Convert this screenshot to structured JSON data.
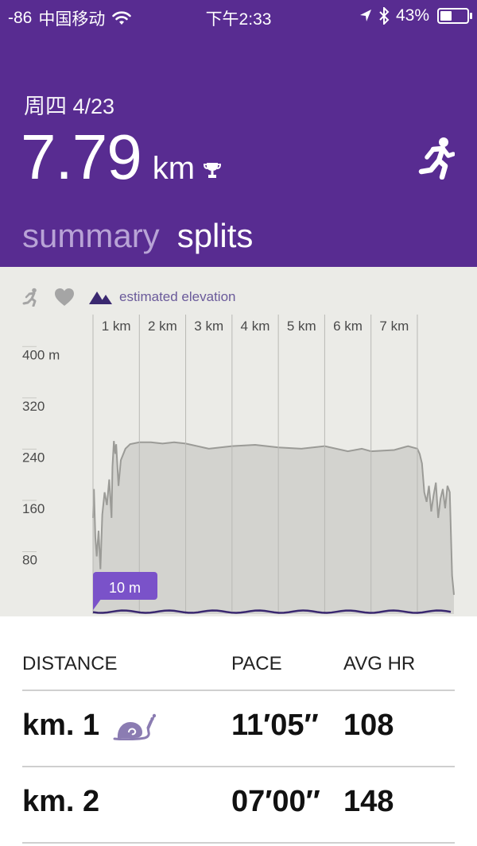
{
  "status_bar": {
    "signal": "-86",
    "carrier": "中国移动",
    "time": "下午2:33",
    "battery_percent_text": "43%",
    "battery_level": 0.43
  },
  "summary": {
    "date": "周四 4/23",
    "distance": "7.79",
    "unit": "km",
    "activity_icon": "running-person-icon",
    "record_icon": "trophy-icon"
  },
  "tabs": {
    "summary": "summary",
    "splits": "splits",
    "active": "splits"
  },
  "chart": {
    "toolbar": {
      "pace_icon": "runner-icon",
      "heart_icon": "heart-icon",
      "elevation_icon": "mountains-icon",
      "elevation_label": "estimated elevation"
    },
    "current_marker": "10 m"
  },
  "chart_data": {
    "type": "area",
    "title": "",
    "xlabel": "",
    "ylabel": "",
    "x_tick_labels": [
      "1 km",
      "2 km",
      "3 km",
      "4 km",
      "5 km",
      "6 km",
      "7 km"
    ],
    "y_tick_labels": [
      "400 m",
      "320",
      "240",
      "160",
      "80"
    ],
    "y_ticks": [
      400,
      320,
      240,
      160,
      80
    ],
    "ylim": [
      0,
      440
    ],
    "xlim": [
      0,
      7.79
    ],
    "grid": true,
    "series": [
      {
        "values_x": [
          0,
          0.02,
          0.05,
          0.08,
          0.12,
          0.16,
          0.2,
          0.25,
          0.3,
          0.35,
          0.4,
          0.42,
          0.45,
          0.48,
          0.5,
          0.55,
          0.6,
          0.7,
          0.8,
          1.0,
          1.25,
          1.5,
          1.75,
          2.0,
          2.5,
          3.0,
          3.5,
          4.0,
          4.5,
          5.0,
          5.5,
          5.8,
          6.0,
          6.5,
          6.8,
          7.0,
          7.05,
          7.1,
          7.15,
          7.2,
          7.25,
          7.3,
          7.35,
          7.4,
          7.45,
          7.5,
          7.55,
          7.6,
          7.65,
          7.7,
          7.75,
          7.79
        ],
        "values_y": [
          150,
          195,
          120,
          90,
          130,
          70,
          155,
          190,
          170,
          210,
          150,
          230,
          270,
          250,
          265,
          200,
          240,
          258,
          265,
          268,
          268,
          266,
          268,
          266,
          258,
          262,
          264,
          260,
          258,
          262,
          254,
          258,
          254,
          256,
          262,
          258,
          250,
          235,
          190,
          175,
          200,
          160,
          185,
          205,
          150,
          180,
          195,
          165,
          200,
          190,
          60,
          30
        ]
      }
    ],
    "bottom_series": {
      "name": "",
      "values_y": [
        10,
        10
      ]
    },
    "marker_label": "10 m"
  },
  "table": {
    "headers": {
      "distance": "DISTANCE",
      "pace": "PACE",
      "avg_hr": "AVG HR"
    },
    "rows": [
      {
        "distance": "km. 1",
        "pace": "11′05″",
        "avg_hr": "108",
        "icon": "snail-icon"
      },
      {
        "distance": "km. 2",
        "pace": "07′00″",
        "avg_hr": "148",
        "icon": ""
      }
    ]
  },
  "colors": {
    "header_bg": "#582c91",
    "tab_inactive": "#b8a3d6",
    "chart_bg": "#ebebe7",
    "accent_purple": "#7a52c9",
    "snail": "#8b7cb2"
  }
}
